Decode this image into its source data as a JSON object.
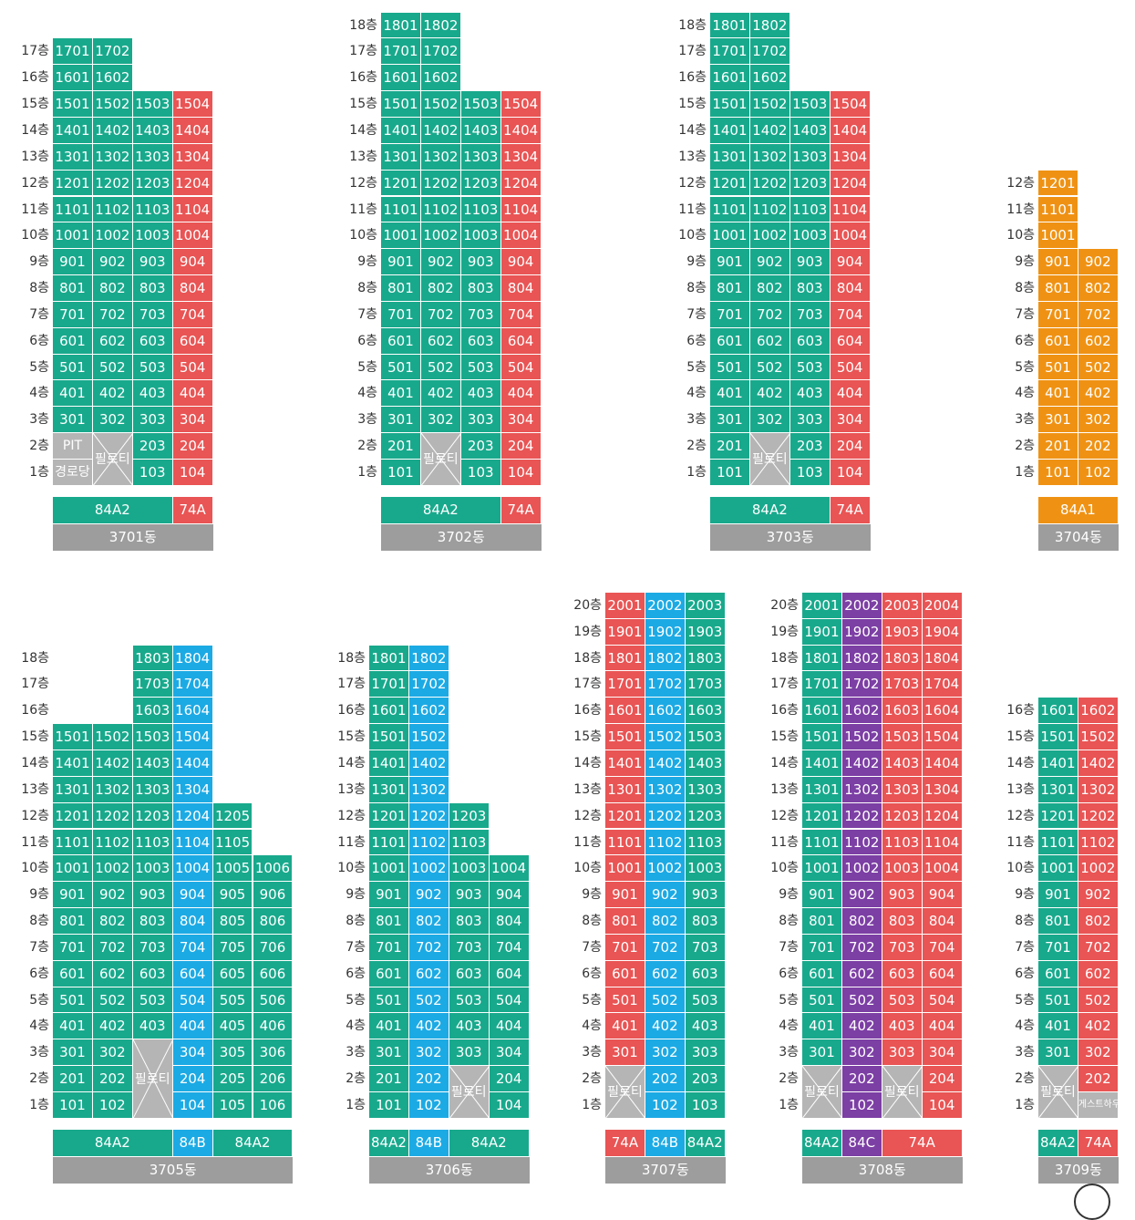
{
  "colors": {
    "green": "#18a98c",
    "red": "#e95454",
    "blue": "#1caae4",
    "orange": "#ef9214",
    "purple": "#7c3fa4",
    "gray": "#b5b5b5",
    "label_gray": "#9d9d9d"
  },
  "floor_suffix": "층",
  "pilotis_label": "필로티",
  "buildings": [
    {
      "name": "3701동",
      "floors": 17,
      "cols": 4,
      "col_colors": [
        "green",
        "green",
        "green",
        "red"
      ],
      "col_max": [
        17,
        17,
        15,
        15
      ],
      "pilotis": [
        {
          "col_start": 1,
          "col_end": 1,
          "floor_start": 1,
          "floor_end": 2
        }
      ],
      "specials": [
        {
          "col": 0,
          "floor": 2,
          "text": "PIT"
        },
        {
          "col": 0,
          "floor": 1,
          "text": "경로당"
        }
      ],
      "types": [
        {
          "label": "84A2",
          "cols": 3,
          "color": "green"
        },
        {
          "label": "74A",
          "cols": 1,
          "color": "red"
        }
      ]
    },
    {
      "name": "3702동",
      "floors": 18,
      "cols": 4,
      "col_colors": [
        "green",
        "green",
        "green",
        "red"
      ],
      "col_max": [
        18,
        18,
        15,
        15
      ],
      "pilotis": [
        {
          "col_start": 1,
          "col_end": 1,
          "floor_start": 1,
          "floor_end": 2
        }
      ],
      "specials": [],
      "types": [
        {
          "label": "84A2",
          "cols": 3,
          "color": "green"
        },
        {
          "label": "74A",
          "cols": 1,
          "color": "red"
        }
      ]
    },
    {
      "name": "3703동",
      "floors": 18,
      "cols": 4,
      "col_colors": [
        "green",
        "green",
        "green",
        "red"
      ],
      "col_max": [
        18,
        18,
        15,
        15
      ],
      "pilotis": [
        {
          "col_start": 1,
          "col_end": 1,
          "floor_start": 1,
          "floor_end": 2
        }
      ],
      "specials": [],
      "types": [
        {
          "label": "84A2",
          "cols": 3,
          "color": "green"
        },
        {
          "label": "74A",
          "cols": 1,
          "color": "red"
        }
      ]
    },
    {
      "name": "3704동",
      "floors": 12,
      "cols": 2,
      "col_colors": [
        "orange",
        "orange"
      ],
      "col_max": [
        12,
        9
      ],
      "pilotis": [],
      "specials": [],
      "types": [
        {
          "label": "84A1",
          "cols": 2,
          "color": "orange"
        }
      ]
    },
    {
      "name": "3705동",
      "floors": 18,
      "cols": 6,
      "col_colors": [
        "green",
        "green",
        "green",
        "blue",
        "green",
        "green"
      ],
      "col_max": [
        15,
        15,
        18,
        18,
        12,
        10
      ],
      "pilotis": [
        {
          "col_start": 2,
          "col_end": 2,
          "floor_start": 1,
          "floor_end": 3
        }
      ],
      "specials": [],
      "types": [
        {
          "label": "84A2",
          "cols": 3,
          "color": "green"
        },
        {
          "label": "84B",
          "cols": 1,
          "color": "blue"
        },
        {
          "label": "84A2",
          "cols": 2,
          "color": "green"
        }
      ]
    },
    {
      "name": "3706동",
      "floors": 18,
      "cols": 4,
      "col_colors": [
        "green",
        "blue",
        "green",
        "green"
      ],
      "col_max": [
        18,
        18,
        12,
        10
      ],
      "pilotis": [
        {
          "col_start": 2,
          "col_end": 2,
          "floor_start": 1,
          "floor_end": 2
        }
      ],
      "specials": [],
      "types": [
        {
          "label": "84A2",
          "cols": 1,
          "color": "green"
        },
        {
          "label": "84B",
          "cols": 1,
          "color": "blue"
        },
        {
          "label": "84A2",
          "cols": 2,
          "color": "green"
        }
      ]
    },
    {
      "name": "3707동",
      "floors": 20,
      "cols": 3,
      "col_colors": [
        "red",
        "blue",
        "green"
      ],
      "col_max": [
        20,
        20,
        20
      ],
      "pilotis": [
        {
          "col_start": 0,
          "col_end": 0,
          "floor_start": 1,
          "floor_end": 2
        }
      ],
      "specials": [],
      "types": [
        {
          "label": "74A",
          "cols": 1,
          "color": "red"
        },
        {
          "label": "84B",
          "cols": 1,
          "color": "blue"
        },
        {
          "label": "84A2",
          "cols": 1,
          "color": "green"
        }
      ]
    },
    {
      "name": "3708동",
      "floors": 20,
      "cols": 4,
      "col_colors": [
        "green",
        "purple",
        "red",
        "red"
      ],
      "col_max": [
        20,
        20,
        20,
        20
      ],
      "pilotis": [
        {
          "col_start": 0,
          "col_end": 0,
          "floor_start": 1,
          "floor_end": 2
        },
        {
          "col_start": 2,
          "col_end": 2,
          "floor_start": 1,
          "floor_end": 2
        }
      ],
      "specials": [],
      "types": [
        {
          "label": "84A2",
          "cols": 1,
          "color": "green"
        },
        {
          "label": "84C",
          "cols": 1,
          "color": "purple"
        },
        {
          "label": "74A",
          "cols": 2,
          "color": "red"
        }
      ]
    },
    {
      "name": "3709동",
      "floors": 16,
      "cols": 2,
      "col_colors": [
        "green",
        "red"
      ],
      "col_max": [
        16,
        16
      ],
      "pilotis": [
        {
          "col_start": 0,
          "col_end": 0,
          "floor_start": 1,
          "floor_end": 2
        }
      ],
      "specials": [
        {
          "col": 1,
          "floor": 1,
          "text": "게스트하우스"
        }
      ],
      "types": [
        {
          "label": "84A2",
          "cols": 1,
          "color": "green"
        },
        {
          "label": "74A",
          "cols": 1,
          "color": "red"
        }
      ]
    }
  ]
}
